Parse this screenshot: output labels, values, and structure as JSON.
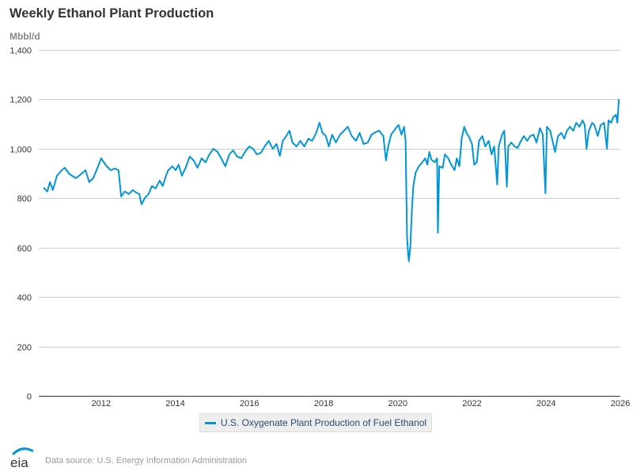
{
  "title": "Weekly Ethanol Plant Production",
  "unit_label": "Mbbl/d",
  "legend_label": "U.S. Oxygenate Plant Production of Fuel Ethanol",
  "source": "Data source: U.S. Energy Information Administration",
  "logo_text": "eia",
  "colors": {
    "series": "#0096d7",
    "grid": "#cccccc",
    "axis": "#333333"
  },
  "chart_data": {
    "type": "line",
    "title": "Weekly Ethanol Plant Production",
    "ylabel": "Mbbl/d",
    "xlabel": "",
    "ylim": [
      0,
      1400
    ],
    "xlim": [
      2010.32,
      2026.0
    ],
    "yticks": [
      0,
      200,
      400,
      600,
      800,
      1000,
      1200,
      1400
    ],
    "ytick_labels": [
      "0",
      "200",
      "400",
      "600",
      "800",
      "1,000",
      "1,200",
      "1,400"
    ],
    "xticks": [
      2012,
      2014,
      2016,
      2018,
      2020,
      2022,
      2024,
      2026
    ],
    "xtick_labels": [
      "2012",
      "2014",
      "2016",
      "2018",
      "2020",
      "2022",
      "2024",
      "2026"
    ],
    "grid": true,
    "legend_position": "bottom",
    "series": [
      {
        "name": "U.S. Oxygenate Plant Production of Fuel Ethanol",
        "points": [
          [
            2010.45,
            843
          ],
          [
            2010.55,
            827
          ],
          [
            2010.62,
            865
          ],
          [
            2010.7,
            833
          ],
          [
            2010.81,
            891
          ],
          [
            2010.94,
            913
          ],
          [
            2011.02,
            923
          ],
          [
            2011.15,
            897
          ],
          [
            2011.32,
            881
          ],
          [
            2011.41,
            891
          ],
          [
            2011.58,
            913
          ],
          [
            2011.68,
            865
          ],
          [
            2011.79,
            881
          ],
          [
            2011.92,
            929
          ],
          [
            2012.0,
            961
          ],
          [
            2012.15,
            929
          ],
          [
            2012.26,
            913
          ],
          [
            2012.37,
            920
          ],
          [
            2012.47,
            913
          ],
          [
            2012.54,
            807
          ],
          [
            2012.64,
            827
          ],
          [
            2012.75,
            817
          ],
          [
            2012.86,
            833
          ],
          [
            2012.94,
            823
          ],
          [
            2013.03,
            817
          ],
          [
            2013.09,
            775
          ],
          [
            2013.18,
            801
          ],
          [
            2013.28,
            817
          ],
          [
            2013.37,
            849
          ],
          [
            2013.47,
            839
          ],
          [
            2013.58,
            871
          ],
          [
            2013.66,
            849
          ],
          [
            2013.75,
            891
          ],
          [
            2013.81,
            913
          ],
          [
            2013.92,
            929
          ],
          [
            2014.01,
            913
          ],
          [
            2014.09,
            935
          ],
          [
            2014.18,
            891
          ],
          [
            2014.28,
            923
          ],
          [
            2014.39,
            968
          ],
          [
            2014.5,
            952
          ],
          [
            2014.6,
            923
          ],
          [
            2014.71,
            961
          ],
          [
            2014.82,
            945
          ],
          [
            2014.92,
            977
          ],
          [
            2015.03,
            1000
          ],
          [
            2015.14,
            987
          ],
          [
            2015.24,
            961
          ],
          [
            2015.35,
            929
          ],
          [
            2015.46,
            977
          ],
          [
            2015.56,
            993
          ],
          [
            2015.67,
            968
          ],
          [
            2015.78,
            961
          ],
          [
            2015.88,
            987
          ],
          [
            2015.99,
            1009
          ],
          [
            2016.1,
            1000
          ],
          [
            2016.2,
            977
          ],
          [
            2016.31,
            984
          ],
          [
            2016.41,
            1009
          ],
          [
            2016.52,
            1032
          ],
          [
            2016.63,
            1000
          ],
          [
            2016.73,
            1019
          ],
          [
            2016.82,
            971
          ],
          [
            2016.9,
            1032
          ],
          [
            2016.99,
            1051
          ],
          [
            2017.08,
            1073
          ],
          [
            2017.16,
            1025
          ],
          [
            2017.27,
            1009
          ],
          [
            2017.37,
            1032
          ],
          [
            2017.48,
            1009
          ],
          [
            2017.59,
            1041
          ],
          [
            2017.69,
            1032
          ],
          [
            2017.8,
            1064
          ],
          [
            2017.89,
            1105
          ],
          [
            2017.97,
            1064
          ],
          [
            2018.06,
            1051
          ],
          [
            2018.14,
            1009
          ],
          [
            2018.23,
            1057
          ],
          [
            2018.33,
            1025
          ],
          [
            2018.44,
            1057
          ],
          [
            2018.55,
            1073
          ],
          [
            2018.65,
            1089
          ],
          [
            2018.76,
            1051
          ],
          [
            2018.87,
            1032
          ],
          [
            2018.97,
            1064
          ],
          [
            2019.08,
            1019
          ],
          [
            2019.19,
            1025
          ],
          [
            2019.29,
            1057
          ],
          [
            2019.4,
            1067
          ],
          [
            2019.5,
            1073
          ],
          [
            2019.61,
            1051
          ],
          [
            2019.68,
            952
          ],
          [
            2019.74,
            1009
          ],
          [
            2019.82,
            1057
          ],
          [
            2019.93,
            1080
          ],
          [
            2020.02,
            1096
          ],
          [
            2020.1,
            1057
          ],
          [
            2020.17,
            1089
          ],
          [
            2020.21,
            1032
          ],
          [
            2020.23,
            833
          ],
          [
            2020.25,
            641
          ],
          [
            2020.28,
            570
          ],
          [
            2020.3,
            545
          ],
          [
            2020.34,
            609
          ],
          [
            2020.38,
            753
          ],
          [
            2020.42,
            849
          ],
          [
            2020.48,
            904
          ],
          [
            2020.57,
            929
          ],
          [
            2020.66,
            945
          ],
          [
            2020.74,
            961
          ],
          [
            2020.8,
            935
          ],
          [
            2020.85,
            987
          ],
          [
            2020.91,
            955
          ],
          [
            2021.0,
            945
          ],
          [
            2021.06,
            961
          ],
          [
            2021.08,
            660
          ],
          [
            2021.12,
            929
          ],
          [
            2021.21,
            923
          ],
          [
            2021.27,
            977
          ],
          [
            2021.36,
            961
          ],
          [
            2021.44,
            935
          ],
          [
            2021.53,
            913
          ],
          [
            2021.59,
            961
          ],
          [
            2021.66,
            929
          ],
          [
            2021.72,
            1041
          ],
          [
            2021.79,
            1089
          ],
          [
            2021.85,
            1064
          ],
          [
            2021.91,
            1051
          ],
          [
            2022.0,
            1019
          ],
          [
            2022.06,
            935
          ],
          [
            2022.13,
            945
          ],
          [
            2022.19,
            1032
          ],
          [
            2022.28,
            1051
          ],
          [
            2022.36,
            1009
          ],
          [
            2022.45,
            1032
          ],
          [
            2022.53,
            977
          ],
          [
            2022.6,
            1009
          ],
          [
            2022.68,
            855
          ],
          [
            2022.72,
            1009
          ],
          [
            2022.81,
            1057
          ],
          [
            2022.87,
            1073
          ],
          [
            2022.94,
            846
          ],
          [
            2022.98,
            1009
          ],
          [
            2023.06,
            1025
          ],
          [
            2023.15,
            1009
          ],
          [
            2023.23,
            1003
          ],
          [
            2023.32,
            1032
          ],
          [
            2023.4,
            1051
          ],
          [
            2023.49,
            1032
          ],
          [
            2023.57,
            1051
          ],
          [
            2023.66,
            1057
          ],
          [
            2023.74,
            1025
          ],
          [
            2023.83,
            1083
          ],
          [
            2023.91,
            1057
          ],
          [
            2023.98,
            820
          ],
          [
            2024.02,
            1089
          ],
          [
            2024.11,
            1073
          ],
          [
            2024.19,
            1019
          ],
          [
            2024.24,
            987
          ],
          [
            2024.32,
            1051
          ],
          [
            2024.41,
            1064
          ],
          [
            2024.49,
            1041
          ],
          [
            2024.56,
            1073
          ],
          [
            2024.64,
            1089
          ],
          [
            2024.73,
            1073
          ],
          [
            2024.81,
            1105
          ],
          [
            2024.9,
            1089
          ],
          [
            2024.98,
            1115
          ],
          [
            2025.04,
            1096
          ],
          [
            2025.09,
            1000
          ],
          [
            2025.15,
            1073
          ],
          [
            2025.24,
            1105
          ],
          [
            2025.3,
            1096
          ],
          [
            2025.39,
            1051
          ],
          [
            2025.47,
            1096
          ],
          [
            2025.56,
            1105
          ],
          [
            2025.64,
            1000
          ],
          [
            2025.68,
            1115
          ],
          [
            2025.75,
            1105
          ],
          [
            2025.81,
            1128
          ],
          [
            2025.88,
            1137
          ],
          [
            2025.92,
            1105
          ],
          [
            2025.96,
            1200
          ]
        ]
      }
    ]
  }
}
